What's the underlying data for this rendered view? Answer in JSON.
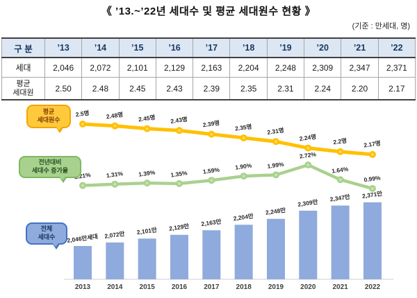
{
  "title": "《 ’13.~’22년 세대수 및 평균 세대원수 현황 》",
  "unit_note": "(기준 : 만세대, 명)",
  "table": {
    "corner_label": "구 분",
    "col_headers": [
      "’13",
      "’14",
      "’15",
      "’16",
      "’17",
      "’18",
      "’19",
      "’20",
      "’21",
      "’22"
    ],
    "rows": [
      {
        "label_lines": [
          "세대"
        ],
        "values": [
          "2,046",
          "2,072",
          "2,101",
          "2,129",
          "2,163",
          "2,204",
          "2,248",
          "2,309",
          "2,347",
          "2,371"
        ]
      },
      {
        "label_lines": [
          "평균",
          "세대원"
        ],
        "values": [
          "2.50",
          "2.48",
          "2.45",
          "2.43",
          "2.39",
          "2.35",
          "2.31",
          "2.24",
          "2.20",
          "2.17"
        ]
      }
    ]
  },
  "chart_data": {
    "type": "combo",
    "categories": [
      "2013",
      "2014",
      "2015",
      "2016",
      "2017",
      "2018",
      "2019",
      "2020",
      "2021",
      "2022"
    ],
    "grid": false,
    "series": [
      {
        "id": "avg_members",
        "name": "평균 세대원수",
        "type": "line",
        "color": "#FFC000",
        "marker_inner": "#FFD966",
        "values": [
          2.5,
          2.48,
          2.45,
          2.43,
          2.39,
          2.35,
          2.31,
          2.24,
          2.2,
          2.17
        ],
        "labels": [
          "2.5명",
          "2.48명",
          "2.45명",
          "2.43명",
          "2.39명",
          "2.35명",
          "2.31명",
          "2.24명",
          "2.2명",
          "2.17명"
        ],
        "ylim": [
          2.0,
          2.6
        ]
      },
      {
        "id": "growth_rate",
        "name": "전년대비 세대수 증가율",
        "type": "line",
        "color": "#A9D18E",
        "marker_inner": "#C9E3B8",
        "values": [
          1.21,
          1.31,
          1.39,
          1.35,
          1.59,
          1.9,
          1.99,
          2.72,
          1.64,
          0.99
        ],
        "labels": [
          "1.21%",
          "1.31%",
          "1.39%",
          "1.35%",
          "1.59%",
          "1.90%",
          "1.99%",
          "2.72%",
          "1.64%",
          "0.99%"
        ],
        "ylim": [
          0.5,
          3.0
        ]
      },
      {
        "id": "total_households",
        "name": "전체 세대수",
        "type": "bar",
        "color": "#8FAADC",
        "values": [
          2046,
          2072,
          2101,
          2129,
          2163,
          2204,
          2248,
          2309,
          2347,
          2371
        ],
        "labels": [
          "2,046만세대",
          "2,072만",
          "2,101만",
          "2,129만",
          "2,163만",
          "2,204만",
          "2,248만",
          "2,309만",
          "2,347만",
          "2,371만"
        ],
        "ylim": [
          1800,
          2450
        ]
      }
    ],
    "callouts": [
      {
        "id": "avg_members",
        "lines": [
          "평균",
          "세대원수"
        ],
        "bg": "#FFC93C",
        "border": "#F1A500",
        "text_color": "#843C0C"
      },
      {
        "id": "growth_rate",
        "lines": [
          "전년대비",
          "세대수 증가율"
        ],
        "bg": "#A9D18E",
        "border": "#7FB75E",
        "text_color": "#22501F"
      },
      {
        "id": "total_households",
        "lines": [
          "전체",
          "세대수"
        ],
        "bg": "#8FAADC",
        "border": "#4472C4",
        "text_color": "#17375E"
      }
    ],
    "label_color": "#262626",
    "axis": {
      "baseline_color": "#CCCCCC",
      "year_label_color": "#404040"
    }
  }
}
